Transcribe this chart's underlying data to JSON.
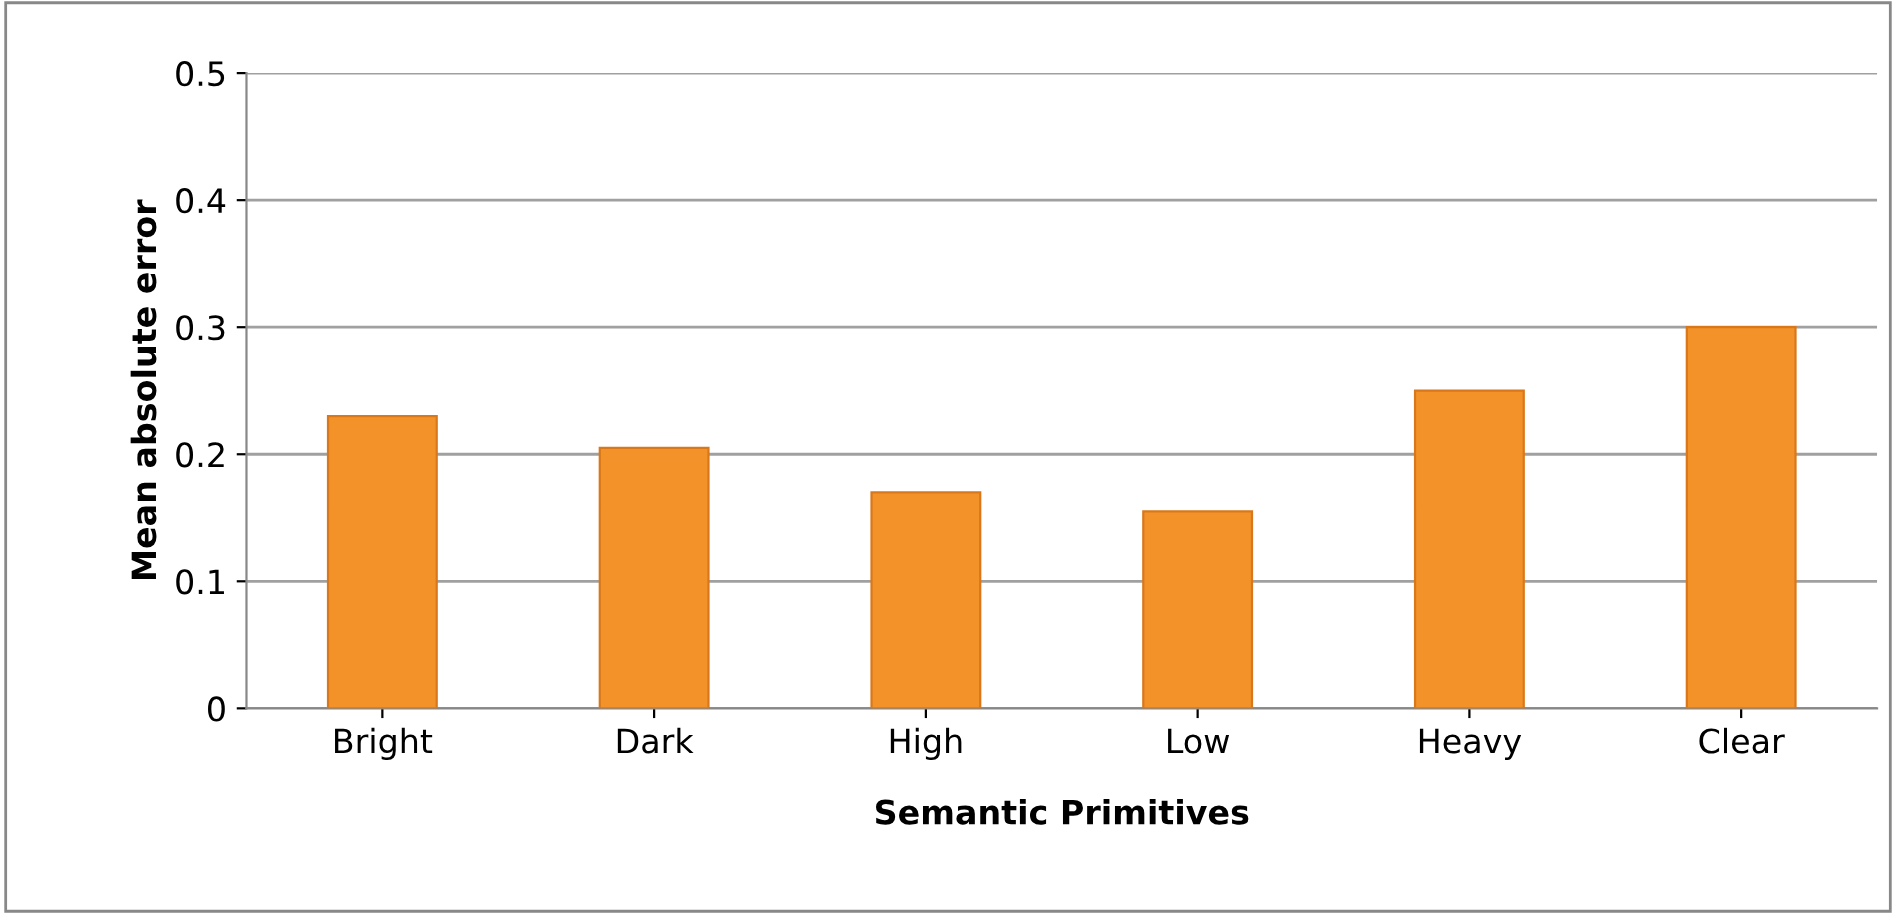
{
  "chart_data": {
    "type": "bar",
    "xlabel": "Semantic Primitives",
    "ylabel": "Mean absolute error",
    "categories": [
      "Bright",
      "Dark",
      "High",
      "Low",
      "Heavy",
      "Clear"
    ],
    "values": [
      0.23,
      0.205,
      0.17,
      0.155,
      0.25,
      0.3
    ],
    "color": "#f39228",
    "ylim": [
      0,
      0.5
    ],
    "yticks": [
      {
        "value": 0,
        "label": "0"
      },
      0.1,
      0.2,
      0.3,
      0.4,
      0.5
    ],
    "grid": "y"
  }
}
